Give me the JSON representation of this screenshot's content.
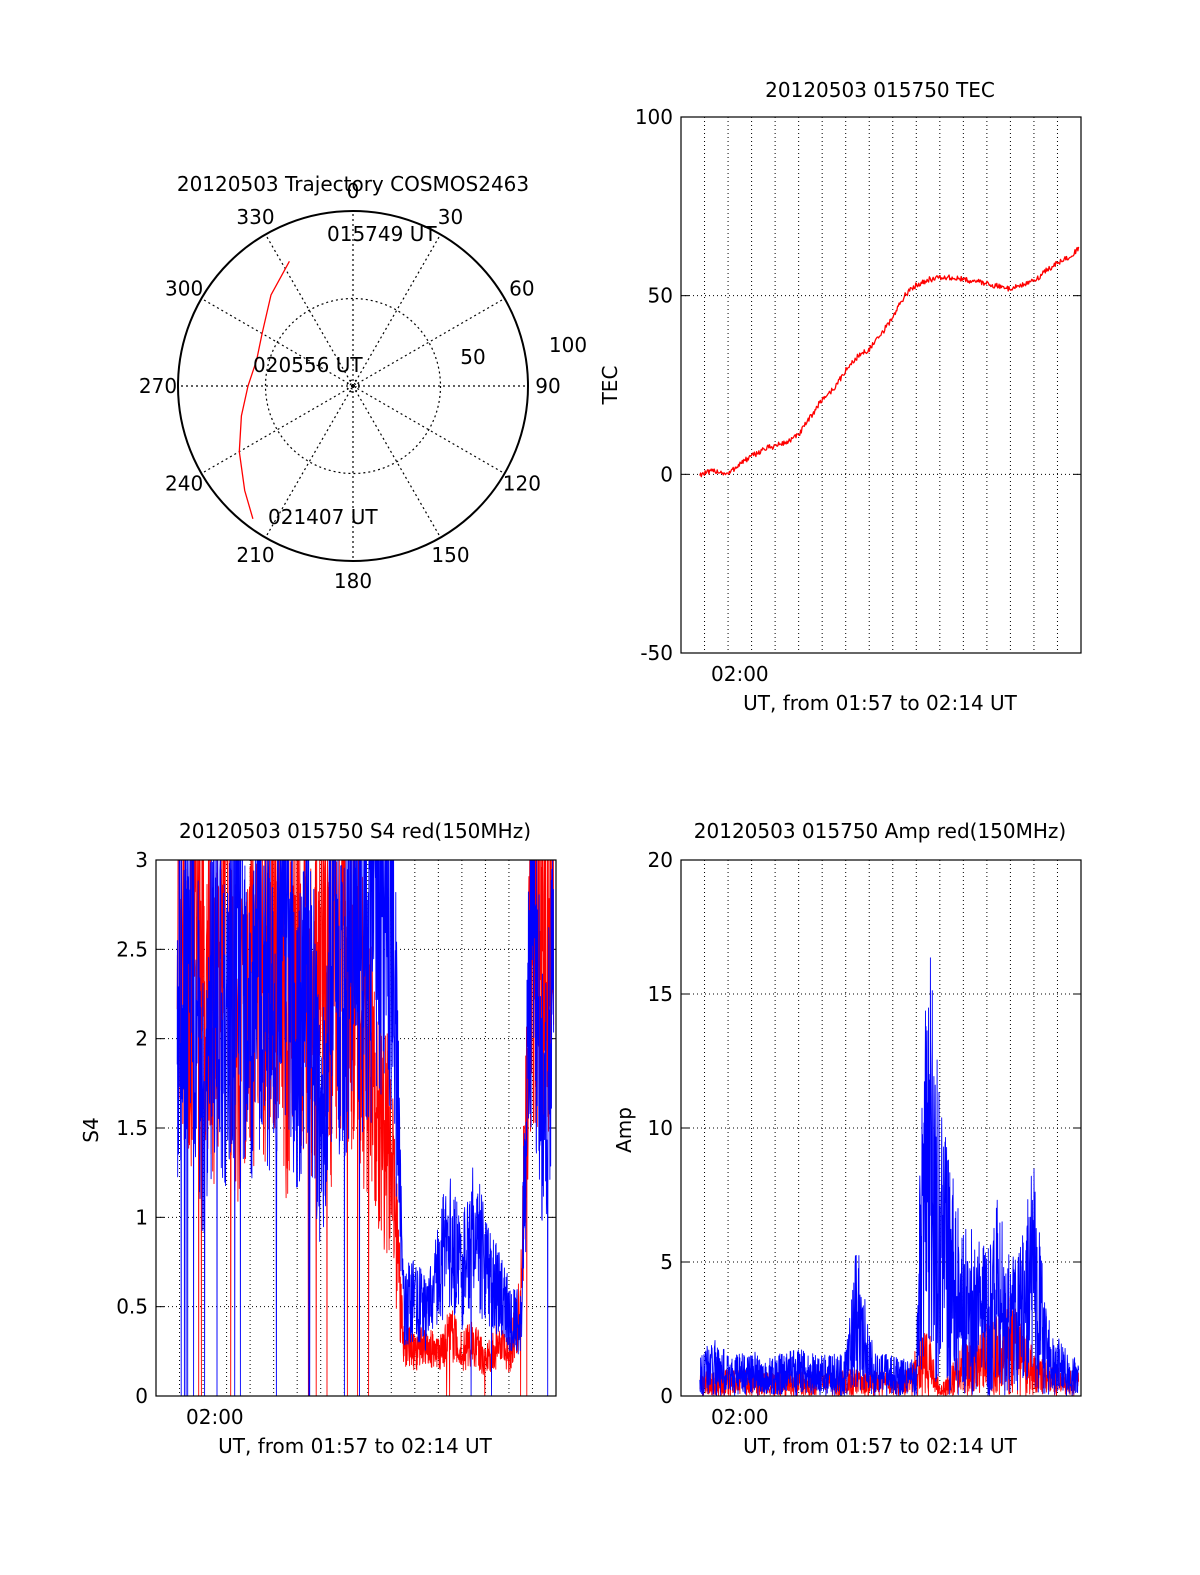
{
  "chart_data": [
    {
      "type": "polar-trajectory",
      "title": "20120503 Trajectory COSMOS2463",
      "azimuth_ticks": [
        {
          "deg": 0,
          "label": "0"
        },
        {
          "deg": 30,
          "label": "30"
        },
        {
          "deg": 60,
          "label": "60"
        },
        {
          "deg": 90,
          "label": "90"
        },
        {
          "deg": 120,
          "label": "120"
        },
        {
          "deg": 150,
          "label": "150"
        },
        {
          "deg": 180,
          "label": "180"
        },
        {
          "deg": 210,
          "label": "210"
        },
        {
          "deg": 240,
          "label": "240"
        },
        {
          "deg": 270,
          "label": "270"
        },
        {
          "deg": 300,
          "label": "300"
        },
        {
          "deg": 330,
          "label": "330"
        }
      ],
      "radial_ticks": [
        {
          "value": 50,
          "label": "50"
        },
        {
          "value": 100,
          "label": "100"
        }
      ],
      "rmax": 100,
      "trajectory": {
        "color": "#ff0000",
        "points": [
          [
            333,
            80
          ],
          [
            318,
            70
          ],
          [
            300,
            60
          ],
          [
            285,
            57
          ],
          [
            270,
            60
          ],
          [
            255,
            66
          ],
          [
            240,
            75
          ],
          [
            226,
            86
          ],
          [
            217,
            95
          ]
        ]
      },
      "annotations": [
        "015749 UT",
        "020556 UT",
        "021407 UT"
      ]
    },
    {
      "type": "line",
      "title": "20120503 015750 TEC",
      "xlabel": "UT, from 01:57 to 02:14 UT",
      "ylabel": "TEC",
      "xlim": [
        0,
        17
      ],
      "ylim": [
        -50,
        100
      ],
      "xticks": [
        {
          "x": 2.5,
          "label": "02:00"
        }
      ],
      "yticks": [
        {
          "y": -50,
          "label": "-50"
        },
        {
          "y": 0,
          "label": "0"
        },
        {
          "y": 50,
          "label": "50"
        },
        {
          "y": 100,
          "label": "100"
        }
      ],
      "grid": true,
      "series": [
        {
          "color": "#ff0000",
          "x": [
            0.8,
            1.5,
            2.0,
            2.5,
            3.0,
            3.5,
            4.0,
            4.5,
            5.0,
            5.5,
            6.0,
            6.5,
            7.0,
            7.5,
            8.0,
            8.5,
            9.0,
            9.5,
            10.0,
            10.5,
            11.0,
            11.5,
            12.0,
            12.5,
            13.0,
            13.5,
            14.0,
            14.5,
            15.0,
            15.5,
            16.0,
            16.5,
            16.9
          ],
          "y": [
            0,
            1,
            0,
            3,
            5,
            7,
            8,
            9,
            11,
            16,
            21,
            24,
            29,
            33,
            35,
            39,
            44,
            50,
            53,
            54.5,
            55,
            55,
            54.5,
            54,
            53.5,
            52.5,
            52,
            53,
            54,
            57,
            59,
            61,
            63
          ]
        }
      ]
    },
    {
      "type": "line",
      "title": "20120503 015750 S4 red(150MHz)",
      "xlabel": "UT, from 01:57 to 02:14 UT",
      "ylabel": "S4",
      "xlim": [
        0,
        17
      ],
      "ylim": [
        0,
        3
      ],
      "xticks": [
        {
          "x": 2.5,
          "label": "02:00"
        }
      ],
      "yticks": [
        {
          "y": 0,
          "label": "0"
        },
        {
          "y": 0.5,
          "label": "0.5"
        },
        {
          "y": 1,
          "label": "1"
        },
        {
          "y": 1.5,
          "label": "1.5"
        },
        {
          "y": 2,
          "label": "2"
        },
        {
          "y": 2.5,
          "label": "2.5"
        },
        {
          "y": 3,
          "label": "3"
        }
      ],
      "grid": true,
      "series": [
        {
          "color": "#ff0000",
          "x": [
            0.9,
            1.5,
            2.0,
            2.5,
            3.0,
            3.5,
            4.0,
            4.5,
            5.0,
            5.5,
            6.0,
            6.5,
            7.0,
            7.5,
            8.0,
            8.5,
            9.0,
            9.5,
            10.0,
            10.5,
            11.0,
            11.5,
            12.0,
            12.5,
            13.0,
            13.5,
            14.0,
            14.5,
            15.0,
            15.5,
            16.0,
            16.5,
            16.9
          ],
          "y": [
            2.6,
            2.3,
            2.7,
            2.0,
            2.5,
            1.8,
            2.4,
            2.2,
            2.6,
            1.9,
            2.5,
            2.0,
            2.4,
            2.1,
            2.5,
            2.3,
            1.9,
            1.6,
            1.3,
            0.3,
            0.25,
            0.3,
            0.22,
            0.35,
            0.25,
            0.3,
            0.2,
            0.28,
            0.22,
            0.5,
            2.8,
            2.5,
            2.9
          ]
        },
        {
          "color": "#0000ff",
          "x": [
            0.9,
            1.5,
            2.0,
            2.5,
            3.0,
            3.5,
            4.0,
            4.5,
            5.0,
            5.5,
            6.0,
            6.5,
            7.0,
            7.5,
            8.0,
            8.5,
            9.0,
            9.5,
            10.0,
            10.5,
            11.0,
            11.5,
            12.0,
            12.5,
            13.0,
            13.5,
            14.0,
            14.5,
            15.0,
            15.5,
            16.0,
            16.5,
            16.9
          ],
          "y": [
            2.2,
            2.6,
            1.6,
            2.4,
            2.0,
            2.7,
            1.9,
            2.5,
            2.1,
            2.8,
            1.8,
            2.6,
            1.3,
            2.7,
            2.2,
            2.8,
            2.5,
            2.9,
            2.9,
            0.5,
            0.55,
            0.45,
            0.7,
            0.9,
            0.65,
            1.0,
            0.7,
            0.6,
            0.45,
            0.4,
            2.9,
            1.5,
            2.2
          ]
        }
      ]
    },
    {
      "type": "line",
      "title": "20120503 015750 Amp red(150MHz)",
      "xlabel": "UT, from 01:57 to 02:14 UT",
      "ylabel": "Amp",
      "xlim": [
        0,
        17
      ],
      "ylim": [
        0,
        20
      ],
      "xticks": [
        {
          "x": 2.5,
          "label": "02:00"
        }
      ],
      "yticks": [
        {
          "y": 0,
          "label": "0"
        },
        {
          "y": 5,
          "label": "5"
        },
        {
          "y": 10,
          "label": "10"
        },
        {
          "y": 15,
          "label": "15"
        },
        {
          "y": 20,
          "label": "20"
        }
      ],
      "grid": true,
      "series": [
        {
          "color": "#ff0000",
          "x": [
            0.8,
            2.0,
            4.0,
            6.0,
            8.0,
            9.5,
            10.5,
            11.0,
            12.0,
            13.0,
            14.0,
            15.0,
            16.0,
            16.9
          ],
          "y": [
            0.8,
            0.9,
            0.8,
            0.9,
            0.9,
            0.8,
            2.5,
            0.3,
            1.8,
            2.5,
            3.5,
            1.5,
            1.0,
            0.8
          ]
        },
        {
          "color": "#0000ff",
          "x": [
            0.8,
            1.5,
            2.0,
            3.0,
            4.0,
            5.0,
            6.0,
            7.0,
            7.5,
            7.8,
            8.2,
            9.0,
            10.0,
            10.3,
            10.6,
            11.0,
            11.5,
            12.0,
            12.5,
            13.0,
            13.5,
            14.0,
            14.5,
            15.0,
            15.5,
            16.0,
            16.5,
            16.9
          ],
          "y": [
            1.5,
            2.0,
            1.4,
            1.5,
            1.4,
            1.6,
            1.4,
            1.5,
            5.5,
            3.5,
            1.5,
            1.4,
            1.2,
            14,
            16,
            10,
            8,
            6,
            5.5,
            5,
            7,
            4.5,
            6,
            8,
            3,
            2,
            1.5,
            1.2
          ]
        }
      ]
    }
  ]
}
